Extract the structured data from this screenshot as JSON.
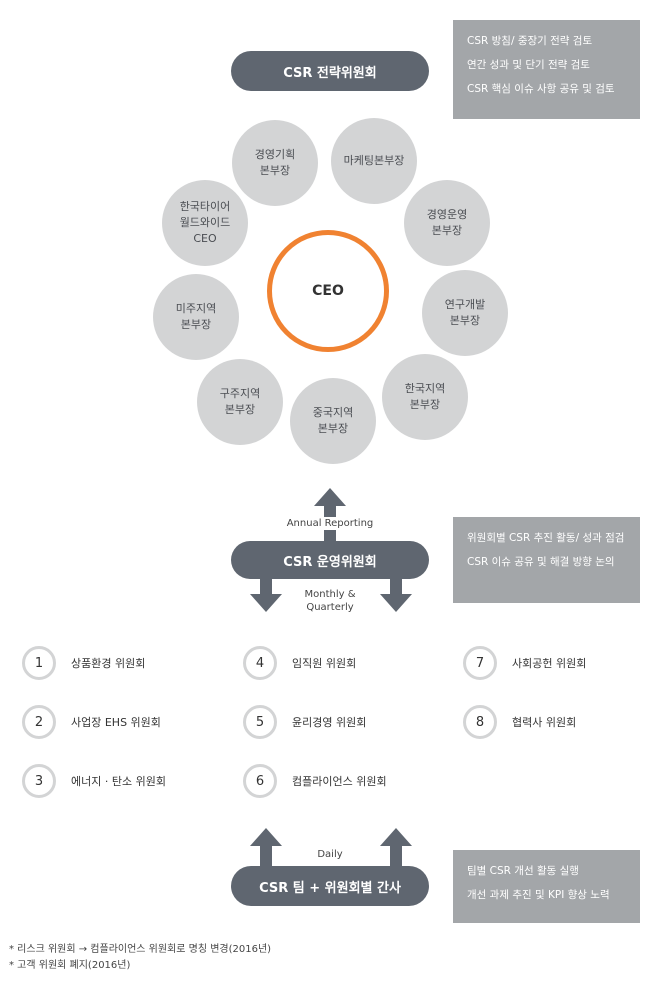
{
  "strategy_committee": {
    "label": "CSR 전략위원회",
    "notes": [
      "CSR 방침/ 중장기 전략 검토",
      "연간 성과 및 단기 전략 검토",
      "CSR 핵심 이슈 사항 공유 및 검토"
    ]
  },
  "ceo": {
    "label": "CEO"
  },
  "divisions": [
    "경영기획\n본부장",
    "마케팅본부장",
    "경영운영\n본부장",
    "연구개발\n본부장",
    "한국지역\n본부장",
    "중국지역\n본부장",
    "구주지역\n본부장",
    "미주지역\n본부장",
    "한국타이어\n월드와이드\nCEO"
  ],
  "arrows": {
    "annual": "Annual Reporting",
    "monthly": "Monthly &\nQuarterly",
    "daily": "Daily"
  },
  "operation_committee": {
    "label": "CSR 운영위원회",
    "notes": [
      "위원회별 CSR 추진 활동/ 성과 점검",
      "CSR 이슈 공유 및 해결 방향 논의"
    ]
  },
  "committees": [
    {
      "num": "1",
      "label": "상품환경 위원회"
    },
    {
      "num": "2",
      "label": "사업장 EHS 위원회"
    },
    {
      "num": "3",
      "label": "에너지 · 탄소 위원회"
    },
    {
      "num": "4",
      "label": "임직원 위원회"
    },
    {
      "num": "5",
      "label": "윤리경영 위원회"
    },
    {
      "num": "6",
      "label": "컴플라이언스 위원회"
    },
    {
      "num": "7",
      "label": "사회공헌 위원회"
    },
    {
      "num": "8",
      "label": "협력사 위원회"
    }
  ],
  "team": {
    "label": "CSR 팀 + 위원회별 간사",
    "notes": [
      "팀별 CSR 개선 활동 실행",
      "개선 과제 추진 및 KPI 향상 노력"
    ]
  },
  "footnotes": [
    "* 리스크 위원회 → 컴플라이언스 위원회로 명칭 변경(2016년)",
    "* 고객 위원회 폐지(2016년)"
  ],
  "colors": {
    "pill": "#5f6670",
    "note": "#a3a6a9",
    "circle": "#d3d4d5",
    "ceo_ring": "#f08231"
  }
}
